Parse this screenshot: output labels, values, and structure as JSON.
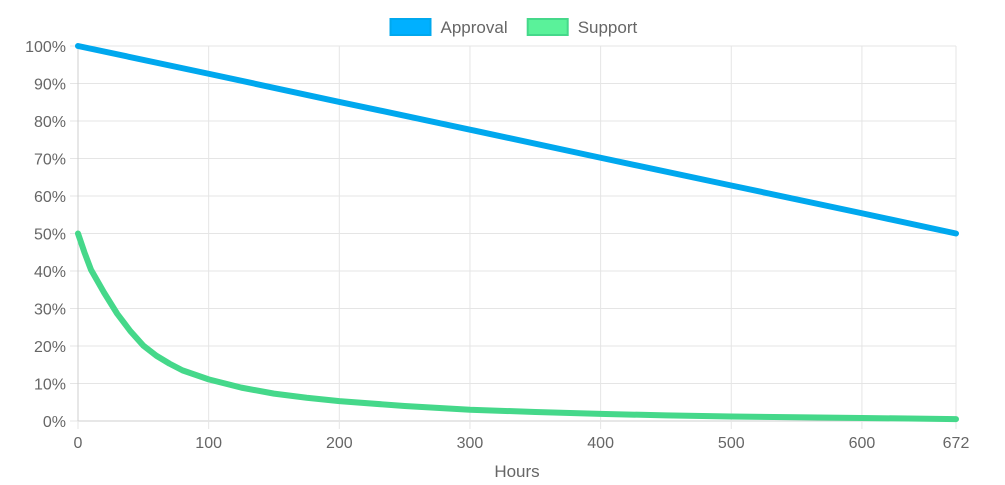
{
  "chart_data": {
    "type": "line",
    "xlabel": "Hours",
    "ylabel": "",
    "xlim": [
      0,
      672
    ],
    "ylim": [
      0,
      100
    ],
    "x_ticks": [
      "0",
      "100",
      "200",
      "300",
      "400",
      "500",
      "600",
      "672"
    ],
    "y_ticks": [
      "0%",
      "10%",
      "20%",
      "30%",
      "40%",
      "50%",
      "60%",
      "70%",
      "80%",
      "90%",
      "100%"
    ],
    "grid": true,
    "legend_position": "top-center",
    "series": [
      {
        "name": "Approval",
        "color": "#00a8ee",
        "fill": "#00b0ff",
        "x": [
          0,
          100,
          200,
          300,
          400,
          500,
          600,
          672
        ],
        "y": [
          100,
          92.6,
          85.1,
          77.7,
          70.2,
          62.8,
          55.4,
          50
        ]
      },
      {
        "name": "Support",
        "color": "#45d88a",
        "fill": "#5af29a",
        "x": [
          0,
          5,
          10,
          20,
          30,
          40,
          50,
          60,
          70,
          80,
          100,
          125,
          150,
          175,
          200,
          250,
          300,
          350,
          400,
          450,
          500,
          550,
          600,
          650,
          672
        ],
        "y": [
          50,
          44.9,
          40.3,
          34.2,
          28.6,
          24.0,
          20.1,
          17.4,
          15.3,
          13.5,
          11.1,
          8.9,
          7.3,
          6.2,
          5.3,
          4.0,
          3.0,
          2.4,
          1.9,
          1.5,
          1.2,
          1.0,
          0.8,
          0.6,
          0.5
        ]
      }
    ]
  }
}
